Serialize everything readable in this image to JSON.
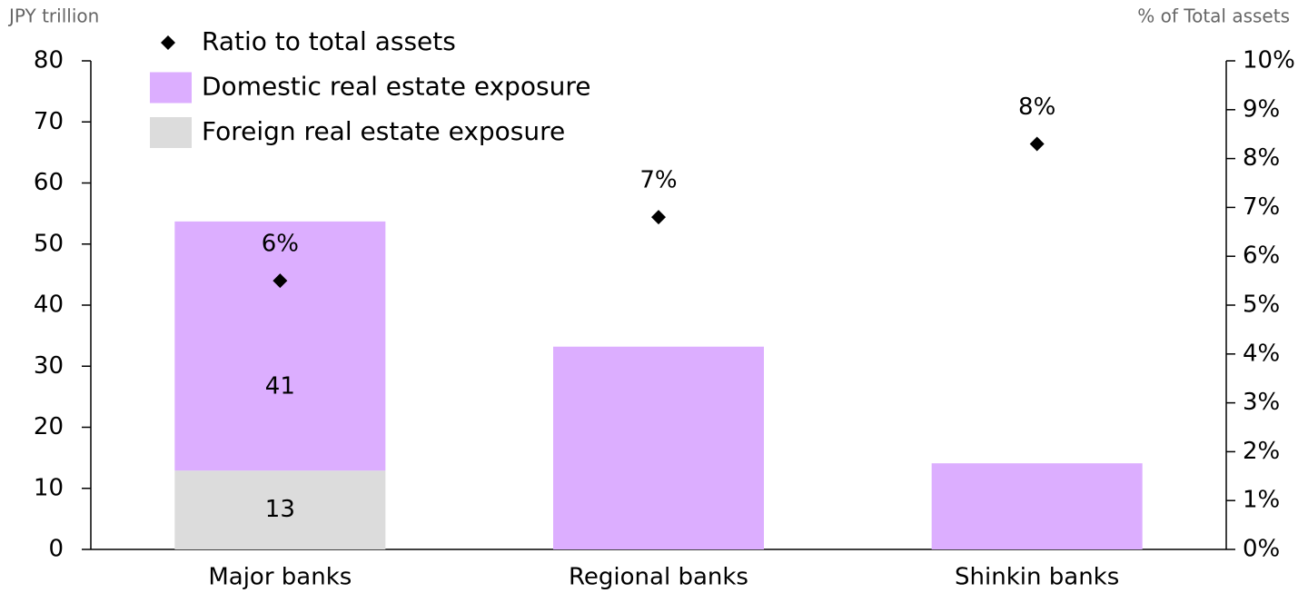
{
  "chart_data": {
    "type": "bar",
    "stacked": true,
    "y_label": "JPY trillion",
    "y2_label": "% of Total assets",
    "categories": [
      "Major banks",
      "Regional banks",
      "Shinkin banks"
    ],
    "series": [
      {
        "name": "Foreign real estate exposure",
        "color": "#dcdcdc",
        "values": [
          12.9,
          null,
          null
        ],
        "value_labels": [
          "13",
          null,
          null
        ]
      },
      {
        "name": "Domestic real estate exposure",
        "color": "#dcaeff",
        "values": [
          40.8,
          33.2,
          14.1
        ],
        "value_labels": [
          "41",
          null,
          null
        ]
      },
      {
        "name": "Ratio to total assets",
        "type": "scatter",
        "axis": "y2",
        "color": "#000000",
        "values": [
          5.5,
          6.8,
          8.3
        ],
        "value_labels": [
          "6%",
          "7%",
          "8%"
        ]
      }
    ],
    "ylim": [
      0,
      80
    ],
    "yticks": [
      0,
      10,
      20,
      30,
      40,
      50,
      60,
      70,
      80
    ],
    "y2lim": [
      0,
      10
    ],
    "y2ticks": [
      {
        "value": 0,
        "label": "0%"
      },
      {
        "value": 1,
        "label": "1%"
      },
      {
        "value": 2,
        "label": "2%"
      },
      {
        "value": 3,
        "label": "3%"
      },
      {
        "value": 4,
        "label": "4%"
      },
      {
        "value": 5,
        "label": "5%"
      },
      {
        "value": 6,
        "label": "6%"
      },
      {
        "value": 7,
        "label": "7%"
      },
      {
        "value": 8,
        "label": "8%"
      },
      {
        "value": 9,
        "label": "9%"
      },
      {
        "value": 10,
        "label": "10%"
      }
    ],
    "legend": "top-left"
  }
}
